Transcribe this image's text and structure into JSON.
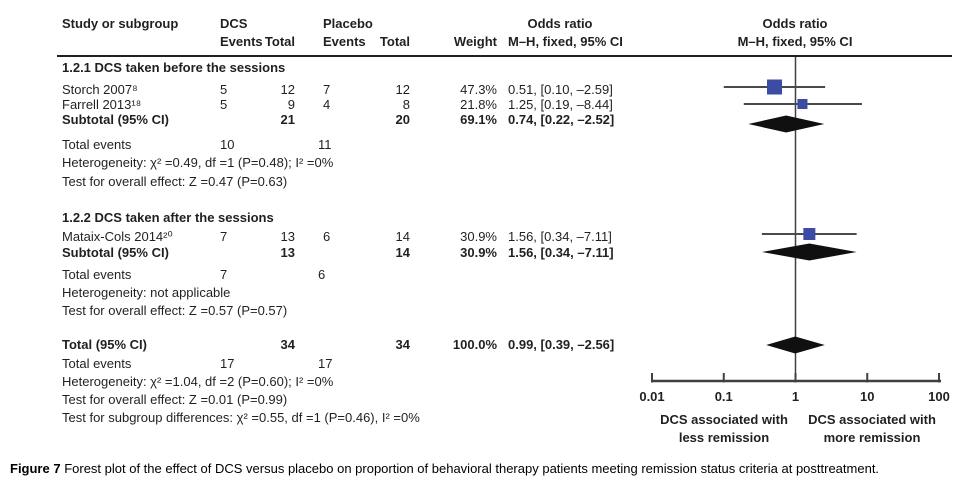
{
  "header": {
    "study": "Study or subgroup",
    "dcs": "DCS",
    "placebo": "Placebo",
    "events": "Events",
    "total": "Total",
    "weight": "Weight",
    "or_title": "Odds ratio",
    "or_sub": "M–H, fixed, 95% CI"
  },
  "table": {
    "group1": {
      "title": "1.2.1 DCS taken before the sessions",
      "rows": [
        {
          "study": "Storch 2007⁸",
          "e1": "5",
          "t1": "12",
          "e2": "7",
          "t2": "12",
          "w": "47.3%",
          "or": "0.51, [0.10, –2.59]"
        },
        {
          "study": "Farrell 2013¹⁸",
          "e1": "5",
          "t1": "9",
          "e2": "4",
          "t2": "8",
          "w": "21.8%",
          "or": "1.25, [0.19, –8.44]"
        }
      ],
      "subtotal": {
        "label": "Subtotal (95% CI)",
        "t1": "21",
        "t2": "20",
        "w": "69.1%",
        "or": "0.74, [0.22, –2.52]"
      },
      "total_events": {
        "label": "Total events",
        "v1": "10",
        "v2": "11"
      },
      "heterogeneity": "Heterogeneity: χ² =0.49, df =1 (P=0.48); I² =0%",
      "overall": "Test for overall effect: Z =0.47 (P=0.63)"
    },
    "group2": {
      "title": "1.2.2 DCS taken after the sessions",
      "rows": [
        {
          "study": "Mataix-Cols 2014²⁰",
          "e1": "7",
          "t1": "13",
          "e2": "6",
          "t2": "14",
          "w": "30.9%",
          "or": "1.56, [0.34, –7.11]"
        }
      ],
      "subtotal": {
        "label": "Subtotal (95% CI)",
        "t1": "13",
        "t2": "14",
        "w": "30.9%",
        "or": "1.56, [0.34, –7.11]"
      },
      "total_events": {
        "label": "Total events",
        "v1": "7",
        "v2": "6"
      },
      "heterogeneity": "Heterogeneity: not applicable",
      "overall": "Test for overall effect: Z =0.57 (P=0.57)"
    },
    "totals": {
      "total": {
        "label": "Total (95% CI)",
        "t1": "34",
        "t2": "34",
        "w": "100.0%",
        "or": "0.99, [0.39, –2.56]"
      },
      "total_events": {
        "label": "Total events",
        "v1": "17",
        "v2": "17"
      },
      "heterogeneity": "Heterogeneity: χ² =1.04, df =2 (P=0.60); I² =0%",
      "overall": "Test for overall effect: Z =0.01 (P=0.99)",
      "subgroup_diff": "Test for subgroup differences: χ² =0.55, df =1 (P=0.46), I² =0%"
    }
  },
  "chart_data": {
    "type": "forest",
    "effect_measure": "Odds ratio, M–H, fixed, 95% CI",
    "x_axis": {
      "scale": "log",
      "min": 0.01,
      "max": 100,
      "ticks": [
        0.01,
        0.1,
        1,
        10,
        100
      ],
      "tick_labels": [
        "0.01",
        "0.1",
        "1",
        "10",
        "100"
      ]
    },
    "null_line": 1,
    "studies": [
      {
        "name": "Storch 2007",
        "group": "1.2.1",
        "or": 0.51,
        "ci_low": 0.1,
        "ci_high": 2.59,
        "weight": 47.3
      },
      {
        "name": "Farrell 2013",
        "group": "1.2.1",
        "or": 1.25,
        "ci_low": 0.19,
        "ci_high": 8.44,
        "weight": 21.8
      },
      {
        "name": "Mataix-Cols 2014",
        "group": "1.2.2",
        "or": 1.56,
        "ci_low": 0.34,
        "ci_high": 7.11,
        "weight": 30.9
      }
    ],
    "summaries": [
      {
        "name": "Subtotal 1.2.1",
        "or": 0.74,
        "ci_low": 0.22,
        "ci_high": 2.52
      },
      {
        "name": "Subtotal 1.2.2",
        "or": 1.56,
        "ci_low": 0.34,
        "ci_high": 7.11
      },
      {
        "name": "Total",
        "or": 0.99,
        "ci_low": 0.39,
        "ci_high": 2.56
      }
    ]
  },
  "footer": {
    "left": [
      "DCS associated with",
      "less remission"
    ],
    "right": [
      "DCS associated with",
      "more remission"
    ]
  },
  "caption": {
    "bold": "Figure 7",
    "text": " Forest plot of the effect of DCS versus placebo on proportion of behavioral therapy patients meeting remission status criteria at posttreatment."
  },
  "colors": {
    "marker": "#3c4ba3",
    "diamond": "#101010",
    "axis": "#3f4041",
    "ci_line": "#4a4a4c",
    "text": "#231f20"
  }
}
